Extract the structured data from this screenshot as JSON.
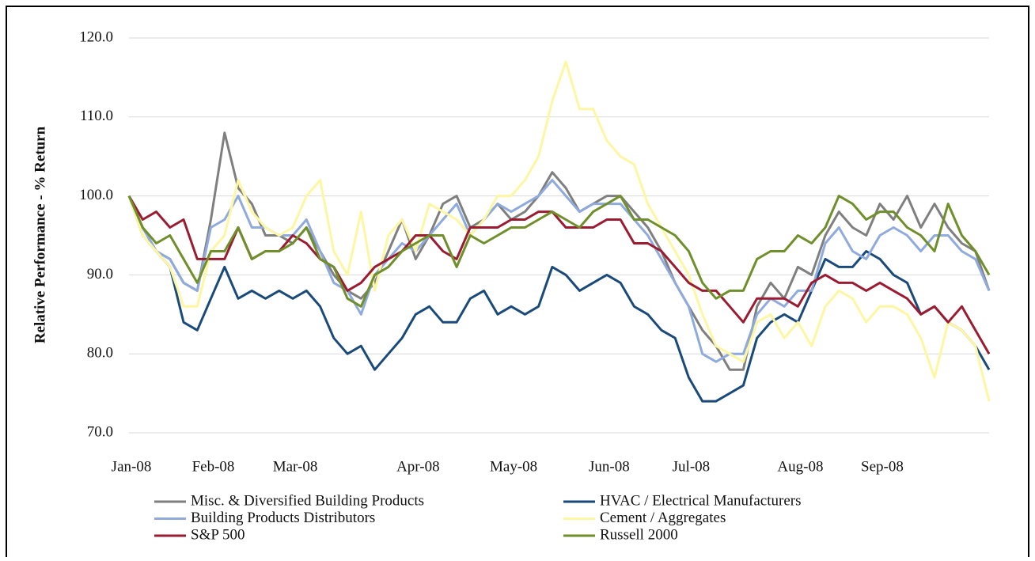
{
  "chart_data": {
    "type": "line",
    "y_axis_label": "Relative Performance - % Return",
    "categories": [
      "Jan-08",
      null,
      null,
      null,
      null,
      null,
      "Feb-08",
      null,
      null,
      null,
      null,
      null,
      "Mar-08",
      null,
      null,
      null,
      null,
      null,
      null,
      null,
      null,
      "Apr-08",
      null,
      null,
      null,
      null,
      null,
      null,
      "May-08",
      null,
      null,
      null,
      null,
      null,
      null,
      "Jun-08",
      null,
      null,
      null,
      null,
      null,
      "Jul-08",
      null,
      null,
      null,
      null,
      null,
      null,
      null,
      "Aug-08",
      null,
      null,
      null,
      null,
      null,
      "Sep-08",
      null,
      null,
      null,
      null,
      null,
      null,
      null,
      null
    ],
    "ylim": [
      70,
      120
    ],
    "yticks": [
      {
        "value": 70,
        "label": "70.0"
      },
      {
        "value": 80,
        "label": "80.0"
      },
      {
        "value": 90,
        "label": "90.0"
      },
      {
        "value": 100,
        "label": "100.0"
      },
      {
        "value": 110,
        "label": "110.0"
      },
      {
        "value": 120,
        "label": "120.0"
      }
    ],
    "grid": true,
    "legend": "bottom",
    "series": [
      {
        "name": "Misc. & Diversified Building Products",
        "color": "#7f7f7f",
        "values": [
          100,
          95,
          93,
          92,
          89,
          88,
          97,
          108,
          101,
          99,
          95,
          95,
          94,
          96,
          93,
          90,
          88,
          87,
          89,
          93,
          97,
          92,
          95,
          99,
          100,
          96,
          97,
          99,
          97,
          98,
          100,
          103,
          101,
          98,
          99,
          100,
          100,
          98,
          96,
          93,
          89,
          86,
          83,
          81,
          78,
          78,
          86,
          89,
          87,
          91,
          90,
          95,
          98,
          96,
          95,
          99,
          97,
          100,
          96,
          99,
          96,
          94,
          93,
          88
        ]
      },
      {
        "name": "HVAC / Electrical Manufacturers",
        "color": "#1a4a7a",
        "values": [
          100,
          96,
          93,
          91,
          84,
          83,
          87,
          91,
          87,
          88,
          87,
          88,
          87,
          88,
          86,
          82,
          80,
          81,
          78,
          80,
          82,
          85,
          86,
          84,
          84,
          87,
          88,
          85,
          86,
          85,
          86,
          91,
          90,
          88,
          89,
          90,
          89,
          86,
          85,
          83,
          82,
          77,
          74,
          74,
          75,
          76,
          82,
          84,
          85,
          84,
          88,
          92,
          91,
          91,
          93,
          92,
          90,
          89,
          85,
          86,
          84,
          83,
          81,
          78
        ]
      },
      {
        "name": "Building Products Distributors",
        "color": "#8faadc",
        "values": [
          100,
          96,
          93,
          92,
          89,
          88,
          96,
          97,
          100,
          96,
          96,
          95,
          95,
          97,
          93,
          89,
          88,
          85,
          90,
          92,
          94,
          93,
          95,
          97,
          99,
          95,
          97,
          99,
          98,
          99,
          100,
          102,
          100,
          98,
          99,
          99,
          99,
          97,
          95,
          92,
          89,
          86,
          80,
          79,
          80,
          80,
          85,
          87,
          86,
          88,
          88,
          94,
          96,
          93,
          92,
          95,
          96,
          95,
          93,
          95,
          95,
          93,
          92,
          88
        ]
      },
      {
        "name": "Cement / Aggregates",
        "color": "#fdf6a3",
        "values": [
          100,
          95,
          93,
          91,
          86,
          86,
          93,
          95,
          102,
          98,
          96,
          95,
          96,
          100,
          102,
          93,
          90,
          98,
          88,
          95,
          97,
          93,
          99,
          98,
          97,
          95,
          97,
          100,
          100,
          102,
          105,
          112,
          117,
          111,
          111,
          107,
          105,
          104,
          99,
          96,
          93,
          90,
          85,
          81,
          80,
          79,
          84,
          85,
          82,
          84,
          81,
          86,
          88,
          87,
          84,
          86,
          86,
          85,
          82,
          77,
          84,
          83,
          81,
          74
        ]
      },
      {
        "name": "S&P 500",
        "color": "#9b1c31",
        "values": [
          100,
          97,
          98,
          96,
          97,
          92,
          92,
          92,
          96,
          92,
          93,
          93,
          95,
          94,
          92,
          91,
          88,
          89,
          91,
          92,
          93,
          95,
          95,
          93,
          92,
          96,
          96,
          96,
          97,
          97,
          98,
          98,
          96,
          96,
          96,
          97,
          97,
          94,
          94,
          93,
          91,
          89,
          88,
          88,
          86,
          84,
          87,
          87,
          87,
          86,
          89,
          90,
          89,
          89,
          88,
          89,
          88,
          87,
          85,
          86,
          84,
          86,
          83,
          80
        ]
      },
      {
        "name": "Russell 2000",
        "color": "#6f8f2a",
        "values": [
          100,
          96,
          94,
          95,
          92,
          89,
          93,
          93,
          96,
          92,
          93,
          93,
          94,
          96,
          92,
          91,
          87,
          86,
          90,
          91,
          93,
          94,
          95,
          95,
          91,
          95,
          94,
          95,
          96,
          96,
          97,
          98,
          97,
          96,
          98,
          99,
          100,
          97,
          97,
          96,
          95,
          93,
          89,
          87,
          88,
          88,
          92,
          93,
          93,
          95,
          94,
          96,
          100,
          99,
          97,
          98,
          98,
          96,
          95,
          93,
          99,
          95,
          93,
          90
        ]
      }
    ]
  }
}
